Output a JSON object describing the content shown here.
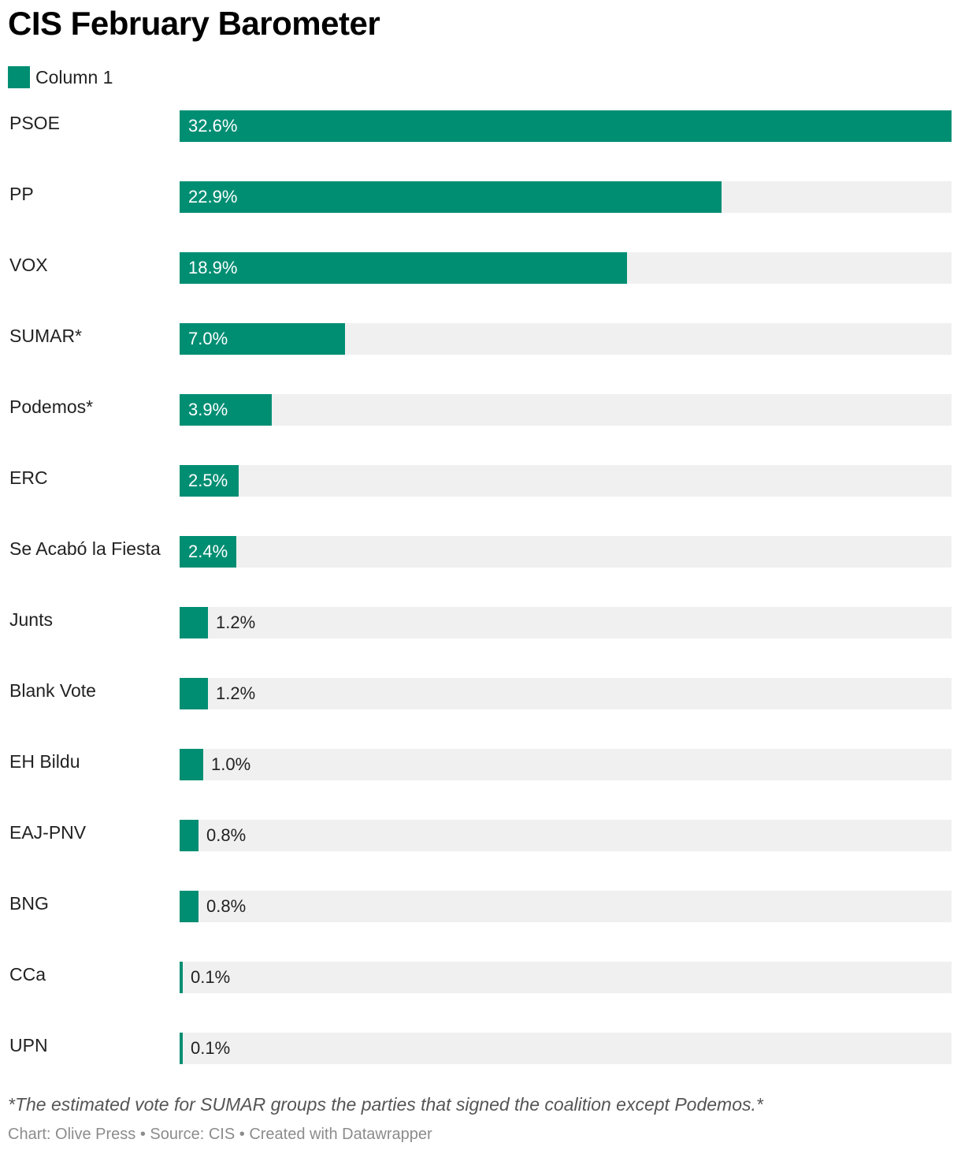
{
  "chart_data": {
    "type": "bar",
    "orientation": "horizontal",
    "title": "CIS February Barometer",
    "legend": {
      "position": "top-left",
      "entries": [
        "Column 1"
      ]
    },
    "series": [
      {
        "name": "Column 1",
        "color": "#008e73",
        "values": [
          32.6,
          22.9,
          18.9,
          7.0,
          3.9,
          2.5,
          2.4,
          1.2,
          1.2,
          1.0,
          0.8,
          0.8,
          0.1,
          0.1
        ]
      }
    ],
    "categories": [
      "PSOE",
      "PP",
      "VOX",
      "SUMAR*",
      "Podemos*",
      "ERC",
      "Se Acabó la Fiesta",
      "Junts",
      "Blank Vote",
      "EH Bildu",
      "EAJ-PNV",
      "BNG",
      "CCa",
      "UPN"
    ],
    "value_labels": [
      "32.6%",
      "22.9%",
      "18.9%",
      "7.0%",
      "3.9%",
      "2.5%",
      "2.4%",
      "1.2%",
      "1.2%",
      "1.0%",
      "0.8%",
      "0.8%",
      "0.1%",
      "0.1%"
    ],
    "xlim": [
      0,
      32.6
    ],
    "grid": false,
    "track_color": "#f0f0f0",
    "notes": "*The estimated vote for SUMAR groups the parties that signed the coalition except Podemos.*",
    "footer": "Chart: Olive Press • Source: CIS • Created with Datawrapper"
  }
}
